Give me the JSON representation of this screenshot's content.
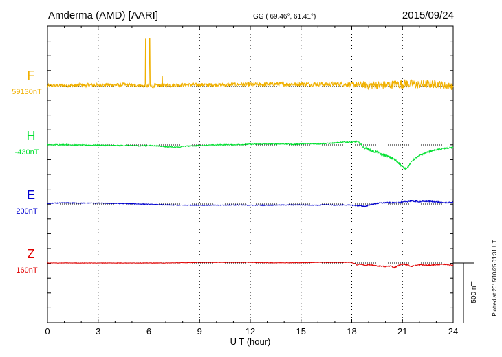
{
  "header": {
    "station": "Amderma (AMD)  [AARI]",
    "coords": "GG ( 69.46°,  61.41°)",
    "date": "2015/09/24"
  },
  "footer": {
    "plotted": "Plotted at 2015/10/25 01:31  UT",
    "scale_label": "500 nT"
  },
  "chart_data": {
    "type": "line",
    "title": "",
    "xlabel": "U T (hour)",
    "xlim": [
      0,
      24
    ],
    "x_ticks": [
      0,
      3,
      6,
      9,
      12,
      15,
      18,
      21,
      24
    ],
    "scale_nT": 500,
    "grid": "dotted vertical every 3 hours, dotted baseline per trace",
    "series": [
      {
        "name": "F",
        "baseline_label": "59130nT",
        "color": "#f0b000",
        "x": [
          0,
          0.5,
          1,
          1.5,
          2,
          2.5,
          3,
          3.5,
          4,
          4.5,
          5,
          5.3,
          5.5,
          5.7,
          6,
          6.5,
          6.8,
          7,
          7.5,
          8,
          8.5,
          9,
          9.5,
          10,
          10.5,
          11,
          11.5,
          12,
          12.5,
          13,
          13.5,
          14,
          14.5,
          15,
          15.5,
          16,
          16.5,
          17,
          17.5,
          18,
          18.5,
          19,
          19.5,
          20,
          20.5,
          21,
          21.5,
          22,
          22.5,
          23,
          23.5,
          24
        ],
        "values": [
          5,
          8,
          10,
          8,
          12,
          10,
          12,
          15,
          12,
          14,
          10,
          12,
          8,
          4,
          4,
          8,
          12,
          10,
          12,
          14,
          13,
          15,
          14,
          16,
          14,
          16,
          18,
          18,
          16,
          18,
          20,
          20,
          18,
          22,
          20,
          20,
          18,
          22,
          18,
          14,
          18,
          10,
          14,
          12,
          18,
          22,
          20,
          18,
          20,
          22,
          10,
          0
        ],
        "noise": [
          15,
          15,
          15,
          15,
          15,
          15,
          15,
          15,
          15,
          15,
          15,
          15,
          15,
          15,
          15,
          15,
          15,
          15,
          15,
          15,
          15,
          15,
          15,
          15,
          15,
          15,
          15,
          18,
          18,
          18,
          18,
          18,
          18,
          18,
          18,
          18,
          18,
          18,
          18,
          25,
          25,
          35,
          35,
          35,
          35,
          40,
          40,
          35,
          35,
          35,
          30,
          30
        ],
        "spikes": [
          {
            "x": 5.8,
            "value": 400
          },
          {
            "x": 6.05,
            "value": 400
          },
          {
            "x": 6.8,
            "value": 90
          }
        ]
      },
      {
        "name": "H",
        "baseline_label": "-430nT",
        "color": "#00e030",
        "x": [
          0,
          1,
          2,
          3,
          4,
          5,
          5.5,
          6,
          6.5,
          7,
          7.5,
          7.8,
          8,
          9,
          10,
          11,
          12,
          13,
          14,
          14.5,
          15,
          15.5,
          16,
          16.5,
          17,
          17.5,
          18,
          18.3,
          18.5,
          18.7,
          19,
          19.3,
          19.5,
          19.7,
          20,
          20.3,
          20.5,
          20.8,
          21,
          21.2,
          21.4,
          21.6,
          22,
          22.5,
          23,
          23.5,
          24
        ],
        "values": [
          0,
          2,
          -2,
          -2,
          -5,
          -5,
          -8,
          -5,
          -8,
          -15,
          -18,
          -20,
          -12,
          -5,
          0,
          2,
          5,
          8,
          8,
          5,
          8,
          10,
          8,
          12,
          15,
          25,
          20,
          30,
          10,
          -20,
          -40,
          -55,
          -60,
          -75,
          -90,
          -105,
          -120,
          -150,
          -185,
          -200,
          -170,
          -130,
          -90,
          -60,
          -40,
          -30,
          -20
        ],
        "noise": [
          4,
          4,
          4,
          4,
          4,
          4,
          4,
          4,
          4,
          4,
          4,
          4,
          4,
          4,
          4,
          4,
          4,
          4,
          4,
          4,
          4,
          4,
          4,
          4,
          4,
          4,
          6,
          6,
          6,
          10,
          10,
          10,
          10,
          10,
          10,
          10,
          10,
          10,
          10,
          6,
          6,
          6,
          6,
          6,
          6,
          6,
          6
        ]
      },
      {
        "name": "E",
        "baseline_label": "200nT",
        "color": "#0000d0",
        "x": [
          0,
          1,
          2,
          3,
          4,
          5,
          6,
          7,
          8,
          9,
          10,
          11,
          12,
          13,
          14,
          15,
          16,
          16.5,
          17,
          17.5,
          18,
          18.5,
          18.8,
          19,
          19.5,
          20,
          20.5,
          21,
          21.5,
          22,
          22.5,
          23,
          23.5,
          24
        ],
        "values": [
          5,
          10,
          8,
          8,
          5,
          2,
          -2,
          -8,
          -10,
          -10,
          -10,
          -8,
          -10,
          -10,
          -8,
          -8,
          -10,
          -5,
          -10,
          -8,
          -10,
          -15,
          -20,
          -8,
          5,
          12,
          10,
          15,
          25,
          20,
          22,
          18,
          10,
          15
        ],
        "noise": [
          3,
          3,
          3,
          3,
          3,
          3,
          3,
          3,
          3,
          3,
          3,
          3,
          3,
          3,
          3,
          3,
          3,
          3,
          3,
          3,
          4,
          5,
          5,
          5,
          5,
          5,
          5,
          5,
          5,
          5,
          5,
          5,
          5,
          5
        ]
      },
      {
        "name": "Z",
        "baseline_label": "160nT",
        "color": "#e00000",
        "x": [
          0,
          1,
          2,
          3,
          4,
          5,
          6,
          7,
          8,
          9,
          10,
          11,
          12,
          13,
          14,
          15,
          16,
          17,
          17.5,
          18,
          18.3,
          18.5,
          18.8,
          19,
          19.5,
          20,
          20.3,
          20.5,
          20.8,
          21,
          21.3,
          21.5,
          22,
          22.5,
          23,
          23.5,
          24
        ],
        "values": [
          0,
          0,
          0,
          0,
          0,
          0,
          0,
          0,
          2,
          5,
          5,
          5,
          5,
          2,
          2,
          2,
          5,
          5,
          5,
          5,
          -15,
          -10,
          -20,
          -15,
          -25,
          -30,
          -25,
          -40,
          -20,
          -10,
          -15,
          -30,
          -15,
          -20,
          -15,
          -12,
          -20
        ],
        "noise": [
          2,
          2,
          2,
          2,
          2,
          2,
          2,
          2,
          2,
          2,
          2,
          2,
          2,
          2,
          2,
          2,
          2,
          2,
          2,
          4,
          4,
          4,
          4,
          4,
          4,
          4,
          4,
          4,
          4,
          4,
          4,
          4,
          4,
          4,
          4,
          4,
          4
        ]
      }
    ]
  }
}
